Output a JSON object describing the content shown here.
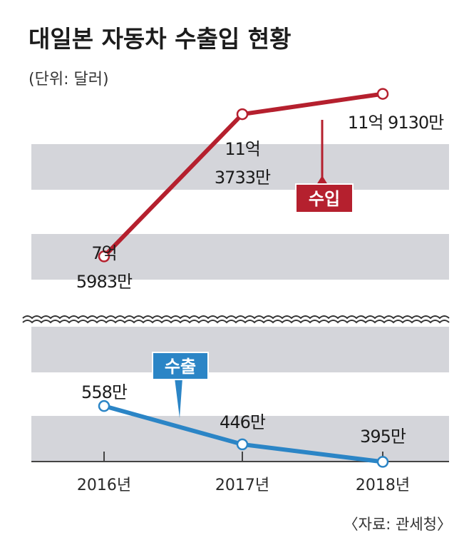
{
  "title": "대일본 자동차 수출입 현황",
  "unit": "(단위: 달러)",
  "source": "〈자료: 관세청〉",
  "colors": {
    "import": "#b5202e",
    "export": "#2b85c6",
    "band": "#d4d5da"
  },
  "chart_data": {
    "type": "line",
    "categories": [
      "2016년",
      "2017년",
      "2018년"
    ],
    "broken_axis": true,
    "grid": "horizontal bands",
    "series": [
      {
        "name": "수입",
        "values": [
          759830000,
          1137330000,
          1191300000
        ],
        "labels": [
          [
            "7억",
            "5983만"
          ],
          [
            "11억",
            "3733만"
          ],
          [
            "11억 9130만"
          ]
        ]
      },
      {
        "name": "수출",
        "values": [
          5580000,
          4460000,
          3950000
        ],
        "labels": [
          [
            "558만"
          ],
          [
            "446만"
          ],
          [
            "395만"
          ]
        ]
      }
    ]
  }
}
